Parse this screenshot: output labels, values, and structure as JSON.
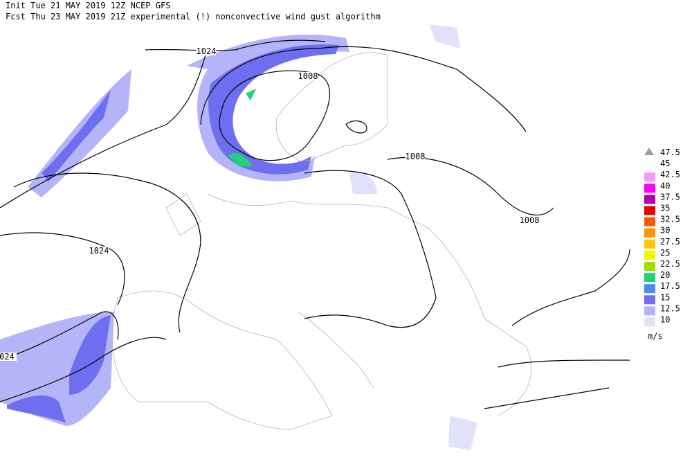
{
  "header": {
    "init": "Init  Tue 21 MAY 2019 12Z  NCEP GFS",
    "forecast": "Fcst Thu 23 MAY 2019 21Z  experimental (!) nonconvective wind gust algorithm"
  },
  "contour_labels": [
    "1024",
    "1008",
    "1008",
    "1008",
    "1024",
    "024"
  ],
  "legend": {
    "items": [
      {
        "label": "47.5",
        "color": "#a0a0a0"
      },
      {
        "label": "45"
      },
      {
        "label": "42.5",
        "color": "#f59af5"
      },
      {
        "label": "40",
        "color": "#ff00ff"
      },
      {
        "label": "37.5",
        "color": "#b000b0"
      },
      {
        "label": "35",
        "color": "#e80000"
      },
      {
        "label": "32.5",
        "color": "#f55a00"
      },
      {
        "label": "30",
        "color": "#ff9600"
      },
      {
        "label": "27.5",
        "color": "#ffc800"
      },
      {
        "label": "25",
        "color": "#f5f500"
      },
      {
        "label": "22.5",
        "color": "#a0dc00"
      },
      {
        "label": "20",
        "color": "#1ed278"
      },
      {
        "label": "17.5",
        "color": "#4a8cf0"
      },
      {
        "label": "15",
        "color": "#6e6ef0"
      },
      {
        "label": "12.5",
        "color": "#b4b4f8"
      },
      {
        "label": "10",
        "color": "#e1e1fa"
      }
    ],
    "unit": "m/s"
  }
}
